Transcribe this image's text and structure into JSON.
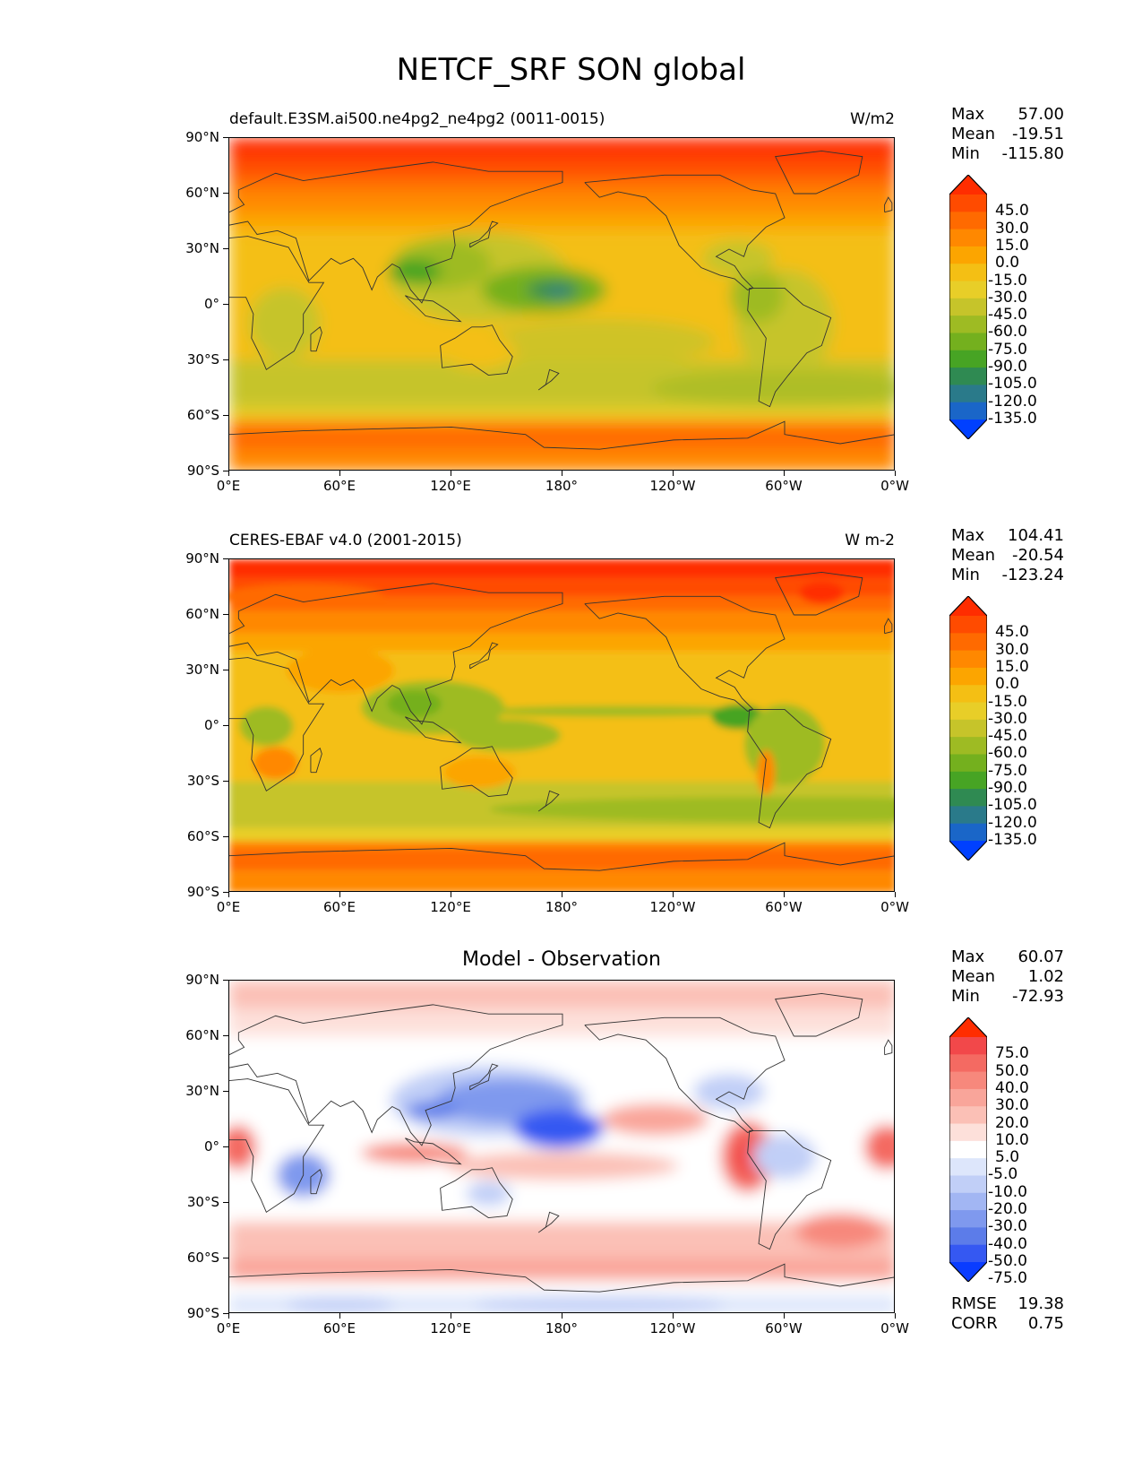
{
  "figure_title": "NETCF_SRF SON global",
  "panels": [
    {
      "id": "model",
      "left_title": "default.E3SM.ai500.ne4pg2_ne4pg2 (0011-0015)",
      "right_title": "W/m2",
      "center_title": "",
      "stats": [
        {
          "label": "Max",
          "value": "57.00"
        },
        {
          "label": "Mean",
          "value": "-19.51"
        },
        {
          "label": "Min",
          "value": "-115.80"
        }
      ],
      "colorbar_labels": [
        "45.0",
        "30.0",
        "15.0",
        "0.0",
        "-15.0",
        "-30.0",
        "-45.0",
        "-60.0",
        "-75.0",
        "-90.0",
        "-105.0",
        "-120.0",
        "-135.0"
      ],
      "colorbar_colors": [
        "#ff2d00",
        "#ff4b00",
        "#ff6a00",
        "#ff8800",
        "#fca500",
        "#f4bf14",
        "#e8ce28",
        "#c6c42a",
        "#9ebb23",
        "#74b01e",
        "#47a424",
        "#2f8a52",
        "#2a7a8a",
        "#1a66c8",
        "#0040ff"
      ],
      "field_style": "model"
    },
    {
      "id": "obs",
      "left_title": "CERES-EBAF v4.0 (2001-2015)",
      "right_title": "W m-2",
      "center_title": "",
      "stats": [
        {
          "label": "Max",
          "value": "104.41"
        },
        {
          "label": "Mean",
          "value": "-20.54"
        },
        {
          "label": "Min",
          "value": "-123.24"
        }
      ],
      "colorbar_labels": [
        "45.0",
        "30.0",
        "15.0",
        "0.0",
        "-15.0",
        "-30.0",
        "-45.0",
        "-60.0",
        "-75.0",
        "-90.0",
        "-105.0",
        "-120.0",
        "-135.0"
      ],
      "colorbar_colors": [
        "#ff2d00",
        "#ff4b00",
        "#ff6a00",
        "#ff8800",
        "#fca500",
        "#f4bf14",
        "#e8ce28",
        "#c6c42a",
        "#9ebb23",
        "#74b01e",
        "#47a424",
        "#2f8a52",
        "#2a7a8a",
        "#1a66c8",
        "#0040ff"
      ],
      "field_style": "obs"
    },
    {
      "id": "diff",
      "left_title": "",
      "right_title": "",
      "center_title": "Model - Observation",
      "stats": [
        {
          "label": "Max",
          "value": "60.07"
        },
        {
          "label": "Mean",
          "value": "1.02"
        },
        {
          "label": "Min",
          "value": "-72.93"
        }
      ],
      "colorbar_labels": [
        "75.0",
        "50.0",
        "40.0",
        "30.0",
        "20.0",
        "10.0",
        "5.0",
        "-5.0",
        "-10.0",
        "-20.0",
        "-30.0",
        "-40.0",
        "-50.0",
        "-75.0"
      ],
      "colorbar_colors": [
        "#ff2d00",
        "#f2484a",
        "#f46a62",
        "#f7887c",
        "#f9a59a",
        "#fbc0b6",
        "#fde0da",
        "#ffffff",
        "#dde6fb",
        "#c1cff7",
        "#a2b6f3",
        "#7f99ee",
        "#5c7ce9",
        "#3558f2",
        "#0a3cff"
      ],
      "field_style": "diff",
      "extra_stats": [
        {
          "label": "RMSE",
          "value": "19.38"
        },
        {
          "label": "CORR",
          "value": "0.75"
        }
      ]
    }
  ],
  "lat_ticks": [
    "90°N",
    "60°N",
    "30°N",
    "0°",
    "30°S",
    "60°S",
    "90°S"
  ],
  "lon_ticks": [
    "0°E",
    "60°E",
    "120°E",
    "180°",
    "120°W",
    "60°W",
    "0°W"
  ]
}
